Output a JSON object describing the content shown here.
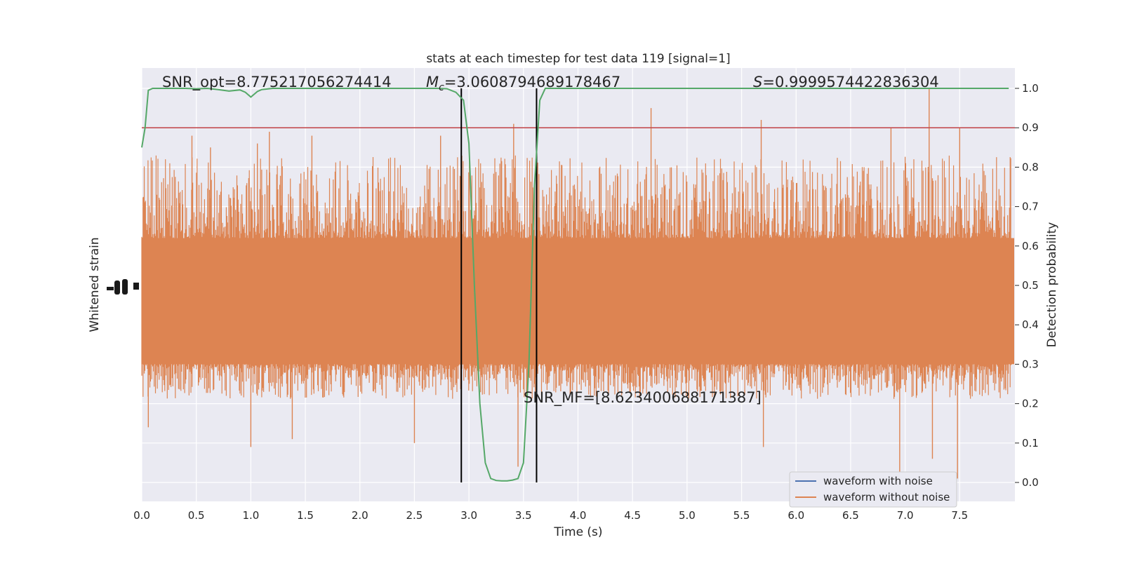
{
  "chart_data": {
    "type": "line",
    "title": "stats at each timestep for test data 119 [signal=1]",
    "xlabel": "Time (s)",
    "ylabel_left": "Whitened strain",
    "ylabel_right": "Detection probability",
    "xlim": [
      0.0,
      8.0
    ],
    "ylim_right": [
      -0.05,
      1.05
    ],
    "x_ticks": [
      0.0,
      0.5,
      1.0,
      1.5,
      2.0,
      2.5,
      3.0,
      3.5,
      4.0,
      4.5,
      5.0,
      5.5,
      6.0,
      6.5,
      7.0,
      7.5
    ],
    "x_tick_labels": [
      "0.0",
      "0.5",
      "1.0",
      "1.5",
      "2.0",
      "2.5",
      "3.0",
      "3.5",
      "4.0",
      "4.5",
      "5.0",
      "5.5",
      "6.0",
      "6.5",
      "7.0",
      "7.5"
    ],
    "y_right_ticks": [
      0.0,
      0.1,
      0.2,
      0.3,
      0.4,
      0.5,
      0.6,
      0.7,
      0.8,
      0.9,
      1.0
    ],
    "y_right_tick_labels": [
      "0.0",
      "0.1",
      "0.2",
      "0.3",
      "0.4",
      "0.5",
      "0.6",
      "0.7",
      "0.8",
      "0.9",
      "1.0"
    ],
    "grid": true,
    "background_color": "#eaeaf2",
    "legend_position": "lower right",
    "series": [
      {
        "name": "waveform with noise",
        "color": "#4c72b0",
        "values": []
      },
      {
        "name": "waveform without noise",
        "color": "#dd8452",
        "strain_envelope_in_probability_axis": {
          "core_low": 0.3,
          "core_high": 0.62,
          "typical_peak_high": 0.82,
          "typical_peak_low": 0.22
        },
        "notable_peaks": [
          {
            "x": 0.46,
            "y": 0.88
          },
          {
            "x": 0.63,
            "y": 0.85
          },
          {
            "x": 1.06,
            "y": 0.86
          },
          {
            "x": 1.17,
            "y": 0.89
          },
          {
            "x": 1.56,
            "y": 0.88
          },
          {
            "x": 2.74,
            "y": 0.88
          },
          {
            "x": 3.41,
            "y": 0.91
          },
          {
            "x": 4.67,
            "y": 0.95
          },
          {
            "x": 5.68,
            "y": 0.92
          },
          {
            "x": 6.87,
            "y": 0.9
          },
          {
            "x": 7.22,
            "y": 1.0
          },
          {
            "x": 7.5,
            "y": 0.9
          }
        ],
        "notable_troughs": [
          {
            "x": 0.06,
            "y": 0.14
          },
          {
            "x": 1.0,
            "y": 0.09
          },
          {
            "x": 1.38,
            "y": 0.11
          },
          {
            "x": 2.5,
            "y": 0.1
          },
          {
            "x": 3.45,
            "y": 0.04
          },
          {
            "x": 5.7,
            "y": 0.09
          },
          {
            "x": 6.95,
            "y": 0.02
          },
          {
            "x": 7.25,
            "y": 0.06
          },
          {
            "x": 7.48,
            "y": 0.01
          }
        ]
      },
      {
        "color": "#55a868",
        "x": [
          0.0,
          0.03,
          0.06,
          0.1,
          0.2,
          0.3,
          0.4,
          0.5,
          0.6,
          0.7,
          0.8,
          0.9,
          0.95,
          1.0,
          1.06,
          1.1,
          1.2,
          1.3,
          1.5,
          1.8,
          2.0,
          2.5,
          2.7,
          2.8,
          2.88,
          2.95,
          3.0,
          3.05,
          3.1,
          3.15,
          3.2,
          3.25,
          3.3,
          3.35,
          3.4,
          3.45,
          3.5,
          3.55,
          3.6,
          3.65,
          3.7,
          3.75,
          3.8,
          4.0,
          4.5,
          5.0,
          5.5,
          6.0,
          6.5,
          7.0,
          7.5,
          7.95
        ],
        "values": [
          0.85,
          0.9,
          0.995,
          1.0,
          1.0,
          1.0,
          1.0,
          0.999,
          1.0,
          0.997,
          0.993,
          0.996,
          0.99,
          0.978,
          0.992,
          0.997,
          1.0,
          1.0,
          1.0,
          1.0,
          1.0,
          1.0,
          1.0,
          0.999,
          0.99,
          0.97,
          0.86,
          0.5,
          0.2,
          0.05,
          0.01,
          0.005,
          0.004,
          0.004,
          0.006,
          0.01,
          0.05,
          0.3,
          0.75,
          0.97,
          1.0,
          1.0,
          1.0,
          1.0,
          1.0,
          1.0,
          1.0,
          1.0,
          1.0,
          1.0,
          1.0,
          1.0
        ]
      },
      {
        "color": "#c44e52",
        "values": [
          0.9,
          0.9
        ]
      }
    ],
    "vertical_lines": [
      {
        "x": 2.93,
        "color": "#000000"
      },
      {
        "x": 3.62,
        "color": "#000000"
      }
    ],
    "annotations": {
      "snr_opt": "SNR_opt=8.775217056274414",
      "mc_symbol": "M",
      "mc_subscript": "c",
      "mc_value": "=3.0608794689178467",
      "s_symbol": "S",
      "s_value": "=0.9999574422836304",
      "snr_mf": "SNR_MF=[8.623400688171387]"
    }
  }
}
